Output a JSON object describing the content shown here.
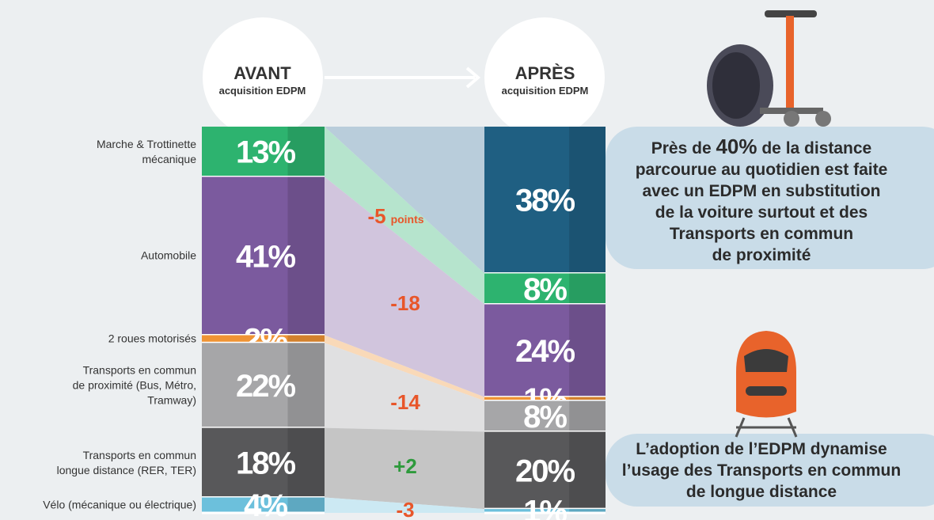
{
  "chart_data": {
    "type": "stacked_bar",
    "columns": [
      {
        "title": "AVANT",
        "subtitle": "acquisition EDPM"
      },
      {
        "title": "APRÈS",
        "subtitle": "acquisition EDPM"
      }
    ],
    "series": [
      {
        "color": "#1f5f82",
        "values": [
          null,
          38
        ],
        "value_labels": [
          null,
          "38%"
        ]
      },
      {
        "name": "Marche & Trottinette mécanique",
        "color": "#2db36f",
        "values": [
          13,
          8
        ],
        "value_labels": [
          "13%",
          "8%"
        ]
      },
      {
        "name": "Automobile",
        "color": "#7b5a9e",
        "values": [
          41,
          24
        ],
        "value_labels": [
          "41%",
          "24%"
        ]
      },
      {
        "name": "2 roues motorisés",
        "color": "#ef9334",
        "values": [
          2,
          1
        ],
        "value_labels": [
          "2%",
          "1%"
        ]
      },
      {
        "name": "Transports en commun de proximité (Bus, Métro, Tramway)",
        "color": "#a6a6a8",
        "values": [
          22,
          8
        ],
        "value_labels": [
          "22%",
          "8%"
        ]
      },
      {
        "name": "Transports en commun longue distance (RER, TER)",
        "color": "#58585a",
        "values": [
          18,
          20
        ],
        "value_labels": [
          "18%",
          "20%"
        ]
      },
      {
        "name": "Vélo (mécanique ou électrique)",
        "color": "#6cc0dc",
        "values": [
          4,
          1
        ],
        "value_labels": [
          "4%",
          "1%"
        ]
      }
    ],
    "annotations": [
      {
        "text": "-5",
        "unit": "points"
      },
      {
        "text": "-18"
      },
      {
        "text": "-14"
      },
      {
        "text": "+2"
      },
      {
        "text": "-3"
      }
    ],
    "callouts": [
      {
        "lead": "Près de ",
        "highlight": "40%",
        "lines": [
          " de la distance",
          "parcourue au quotidien est faite",
          "avec un EDPM  en substitution",
          "de la voiture surtout et des",
          "Transports en commun",
          "de proximité"
        ]
      },
      {
        "lines": [
          "L’adoption de l’EDPM dynamise",
          "l’usage des Transports en commun",
          "de longue distance"
        ]
      }
    ]
  }
}
